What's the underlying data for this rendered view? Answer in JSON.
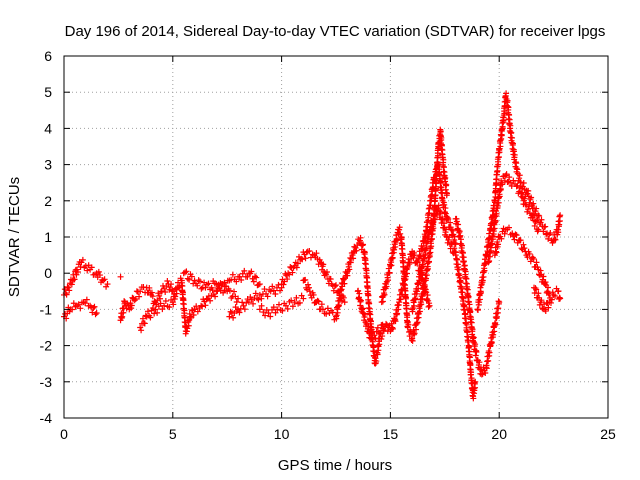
{
  "chart_data": {
    "type": "scatter",
    "title": "Day 196 of 2014, Sidereal Day-to-day VTEC variation (SDTVAR) for receiver lpgs",
    "xlabel": "GPS time / hours",
    "ylabel": "SDTVAR / TECUs",
    "xlim": [
      0,
      25
    ],
    "ylim": [
      -4,
      6
    ],
    "x_ticks": [
      "0",
      "5",
      "10",
      "15",
      "20",
      "25"
    ],
    "y_ticks": [
      "-4",
      "-3",
      "-2",
      "-1",
      "0",
      "1",
      "2",
      "3",
      "4",
      "5",
      "6"
    ],
    "grid": true,
    "marker": "+",
    "series": [
      {
        "name": "SDTVAR",
        "color": "#ff0000",
        "points": [
          [
            0.0,
            -0.6
          ],
          [
            0.2,
            -0.4
          ],
          [
            0.4,
            -0.2
          ],
          [
            0.6,
            0.1
          ],
          [
            0.8,
            0.3
          ],
          [
            1.0,
            0.2
          ],
          [
            1.2,
            0.1
          ],
          [
            1.5,
            0.0
          ],
          [
            1.8,
            -0.2
          ],
          [
            2.0,
            -0.3
          ],
          [
            0.0,
            -1.2
          ],
          [
            0.3,
            -1.0
          ],
          [
            0.6,
            -0.9
          ],
          [
            0.9,
            -0.8
          ],
          [
            1.2,
            -0.9
          ],
          [
            1.5,
            -1.1
          ],
          [
            2.6,
            -0.1
          ],
          [
            2.6,
            -1.3
          ],
          [
            2.8,
            -0.8
          ],
          [
            3.0,
            -1.0
          ],
          [
            3.2,
            -0.7
          ],
          [
            3.5,
            -0.5
          ],
          [
            3.8,
            -0.4
          ],
          [
            4.0,
            -0.6
          ],
          [
            4.2,
            -0.8
          ],
          [
            4.5,
            -0.5
          ],
          [
            4.8,
            -0.3
          ],
          [
            5.0,
            -0.5
          ],
          [
            3.5,
            -1.5
          ],
          [
            3.8,
            -1.2
          ],
          [
            4.2,
            -1.0
          ],
          [
            4.6,
            -0.9
          ],
          [
            5.0,
            -0.8
          ],
          [
            5.2,
            -0.4
          ],
          [
            5.4,
            -0.2
          ],
          [
            5.6,
            -1.6
          ],
          [
            5.8,
            -1.2
          ],
          [
            6.0,
            -1.0
          ],
          [
            6.3,
            -0.9
          ],
          [
            6.6,
            -0.7
          ],
          [
            7.0,
            -0.5
          ],
          [
            7.3,
            -0.3
          ],
          [
            7.6,
            -0.2
          ],
          [
            8.0,
            -0.1
          ],
          [
            8.5,
            0.0
          ],
          [
            9.0,
            -0.3
          ],
          [
            5.5,
            0.0
          ],
          [
            6.0,
            -0.2
          ],
          [
            6.5,
            -0.4
          ],
          [
            7.0,
            -0.3
          ],
          [
            7.5,
            -0.5
          ],
          [
            8.0,
            -0.7
          ],
          [
            7.6,
            -1.2
          ],
          [
            8.0,
            -1.0
          ],
          [
            8.5,
            -0.8
          ],
          [
            9.0,
            -0.6
          ],
          [
            9.5,
            -0.5
          ],
          [
            10.0,
            -0.4
          ],
          [
            9.0,
            -1.0
          ],
          [
            9.4,
            -1.1
          ],
          [
            9.8,
            -1.0
          ],
          [
            10.2,
            -0.9
          ],
          [
            10.6,
            -0.8
          ],
          [
            11.0,
            -0.7
          ],
          [
            10.0,
            -0.3
          ],
          [
            10.3,
            0.0
          ],
          [
            10.6,
            0.2
          ],
          [
            10.9,
            0.4
          ],
          [
            11.2,
            0.6
          ],
          [
            11.5,
            0.5
          ],
          [
            11.8,
            0.3
          ],
          [
            12.0,
            0.0
          ],
          [
            12.3,
            -0.3
          ],
          [
            12.6,
            -0.5
          ],
          [
            12.9,
            -0.8
          ],
          [
            11.0,
            -0.2
          ],
          [
            11.3,
            -0.5
          ],
          [
            11.6,
            -0.8
          ],
          [
            11.9,
            -1.0
          ],
          [
            12.2,
            -1.1
          ],
          [
            12.5,
            -1.2
          ],
          [
            12.8,
            -0.3
          ],
          [
            13.0,
            0.0
          ],
          [
            13.2,
            0.4
          ],
          [
            13.4,
            0.7
          ],
          [
            13.6,
            0.9
          ],
          [
            13.8,
            0.6
          ],
          [
            13.9,
            0.0
          ],
          [
            14.0,
            -0.8
          ],
          [
            14.1,
            -1.4
          ],
          [
            14.2,
            -2.0
          ],
          [
            14.3,
            -2.5
          ],
          [
            14.4,
            -2.2
          ],
          [
            14.5,
            -1.8
          ],
          [
            14.7,
            -1.6
          ],
          [
            13.5,
            -0.5
          ],
          [
            13.7,
            -1.0
          ],
          [
            13.9,
            -1.4
          ],
          [
            14.1,
            -1.8
          ],
          [
            14.8,
            -1.4
          ],
          [
            15.0,
            -1.6
          ],
          [
            15.2,
            -1.3
          ],
          [
            15.4,
            -0.8
          ],
          [
            15.6,
            -0.3
          ],
          [
            15.8,
            0.2
          ],
          [
            16.0,
            0.6
          ],
          [
            16.2,
            0.3
          ],
          [
            16.4,
            0.0
          ],
          [
            16.6,
            -0.5
          ],
          [
            16.8,
            -0.9
          ],
          [
            14.6,
            -0.8
          ],
          [
            14.8,
            -0.3
          ],
          [
            15.0,
            0.2
          ],
          [
            15.2,
            0.8
          ],
          [
            15.4,
            1.2
          ],
          [
            15.5,
            1.0
          ],
          [
            15.8,
            -1.5
          ],
          [
            16.0,
            -1.8
          ],
          [
            16.2,
            -1.4
          ],
          [
            16.4,
            -0.8
          ],
          [
            16.6,
            -0.2
          ],
          [
            16.8,
            0.5
          ],
          [
            17.0,
            1.5
          ],
          [
            17.1,
            2.5
          ],
          [
            17.2,
            3.5
          ],
          [
            17.3,
            3.9
          ],
          [
            17.4,
            3.2
          ],
          [
            17.5,
            2.6
          ],
          [
            17.6,
            2.2
          ],
          [
            16.3,
            0.4
          ],
          [
            16.6,
            1.0
          ],
          [
            16.8,
            1.8
          ],
          [
            17.0,
            2.6
          ],
          [
            17.2,
            3.0
          ],
          [
            17.4,
            2.0
          ],
          [
            17.6,
            1.5
          ],
          [
            17.8,
            1.2
          ],
          [
            18.0,
            0.8
          ],
          [
            16.0,
            -1.0
          ],
          [
            16.4,
            0.0
          ],
          [
            16.8,
            1.2
          ],
          [
            17.2,
            1.8
          ],
          [
            17.6,
            1.0
          ],
          [
            18.0,
            0.5
          ],
          [
            18.2,
            -0.2
          ],
          [
            18.4,
            -1.0
          ],
          [
            18.6,
            -2.0
          ],
          [
            18.7,
            -2.8
          ],
          [
            18.8,
            -3.4
          ],
          [
            18.9,
            -3.0
          ],
          [
            18.0,
            1.5
          ],
          [
            18.2,
            1.0
          ],
          [
            18.4,
            0.2
          ],
          [
            18.6,
            -0.8
          ],
          [
            18.8,
            -1.8
          ],
          [
            19.0,
            -2.4
          ],
          [
            19.2,
            -2.8
          ],
          [
            19.4,
            -2.6
          ],
          [
            19.6,
            -2.0
          ],
          [
            19.8,
            -1.4
          ],
          [
            20.0,
            -0.8
          ],
          [
            19.0,
            -1.0
          ],
          [
            19.2,
            -0.3
          ],
          [
            19.4,
            0.5
          ],
          [
            19.6,
            1.2
          ],
          [
            19.8,
            2.0
          ],
          [
            19.9,
            2.8
          ],
          [
            20.0,
            3.4
          ],
          [
            20.1,
            3.8
          ],
          [
            20.2,
            4.3
          ],
          [
            20.3,
            4.9
          ],
          [
            20.4,
            4.6
          ],
          [
            20.5,
            4.0
          ],
          [
            20.6,
            3.6
          ],
          [
            20.7,
            3.2
          ],
          [
            20.8,
            2.9
          ],
          [
            19.5,
            0.3
          ],
          [
            19.7,
            1.0
          ],
          [
            19.9,
            1.8
          ],
          [
            20.1,
            2.5
          ],
          [
            20.3,
            2.7
          ],
          [
            20.5,
            2.5
          ],
          [
            20.8,
            2.4
          ],
          [
            21.0,
            2.2
          ],
          [
            21.2,
            1.9
          ],
          [
            21.5,
            1.6
          ],
          [
            21.8,
            1.2
          ],
          [
            19.8,
            0.5
          ],
          [
            20.0,
            1.0
          ],
          [
            20.3,
            1.2
          ],
          [
            20.6,
            1.1
          ],
          [
            20.9,
            0.9
          ],
          [
            21.2,
            0.6
          ],
          [
            21.5,
            0.4
          ],
          [
            21.8,
            0.1
          ],
          [
            22.1,
            -0.3
          ],
          [
            22.3,
            -0.6
          ],
          [
            20.8,
            2.8
          ],
          [
            21.0,
            2.5
          ],
          [
            21.3,
            2.2
          ],
          [
            21.6,
            1.8
          ],
          [
            21.9,
            1.4
          ],
          [
            22.2,
            1.1
          ],
          [
            22.5,
            0.9
          ],
          [
            22.7,
            1.2
          ],
          [
            22.8,
            1.6
          ],
          [
            21.6,
            -0.4
          ],
          [
            21.9,
            -0.8
          ],
          [
            22.1,
            -1.0
          ],
          [
            22.3,
            -0.8
          ],
          [
            22.5,
            -0.6
          ],
          [
            22.7,
            -0.5
          ],
          [
            22.8,
            -0.7
          ]
        ]
      }
    ]
  }
}
